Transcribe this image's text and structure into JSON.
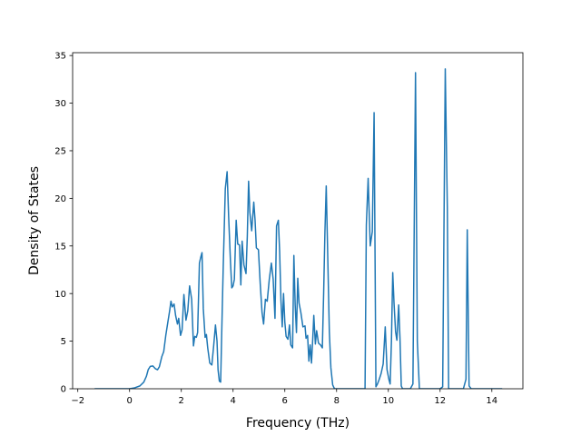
{
  "chart_data": {
    "type": "line",
    "title": "",
    "xlabel": "Frequency (THz)",
    "ylabel": "Density of States",
    "xlim": [
      -2.2,
      15.2
    ],
    "ylim": [
      0,
      35.3
    ],
    "xticks": [
      -2,
      0,
      2,
      4,
      6,
      8,
      10,
      12,
      14
    ],
    "yticks": [
      0,
      5,
      10,
      15,
      20,
      25,
      30,
      35
    ],
    "grid": false,
    "legend": "none",
    "series": [
      {
        "color": "#1f77b4",
        "points": [
          [
            -1.35,
            0
          ],
          [
            0.0,
            0
          ],
          [
            0.2,
            0.1
          ],
          [
            0.4,
            0.3
          ],
          [
            0.55,
            0.7
          ],
          [
            0.65,
            1.3
          ],
          [
            0.72,
            2.0
          ],
          [
            0.8,
            2.35
          ],
          [
            0.9,
            2.4
          ],
          [
            1.0,
            2.1
          ],
          [
            1.08,
            2.0
          ],
          [
            1.15,
            2.3
          ],
          [
            1.25,
            3.4
          ],
          [
            1.32,
            3.9
          ],
          [
            1.4,
            5.6
          ],
          [
            1.48,
            7.0
          ],
          [
            1.55,
            8.2
          ],
          [
            1.6,
            9.2
          ],
          [
            1.65,
            8.6
          ],
          [
            1.72,
            8.9
          ],
          [
            1.78,
            7.7
          ],
          [
            1.85,
            6.8
          ],
          [
            1.9,
            7.4
          ],
          [
            1.97,
            5.6
          ],
          [
            2.03,
            6.2
          ],
          [
            2.1,
            9.9
          ],
          [
            2.18,
            7.2
          ],
          [
            2.25,
            8.2
          ],
          [
            2.32,
            10.8
          ],
          [
            2.4,
            9.4
          ],
          [
            2.47,
            4.5
          ],
          [
            2.52,
            5.5
          ],
          [
            2.58,
            5.4
          ],
          [
            2.63,
            5.9
          ],
          [
            2.7,
            13.2
          ],
          [
            2.75,
            13.8
          ],
          [
            2.8,
            14.3
          ],
          [
            2.85,
            8.4
          ],
          [
            2.92,
            5.4
          ],
          [
            2.97,
            5.7
          ],
          [
            3.02,
            4.3
          ],
          [
            3.1,
            2.7
          ],
          [
            3.18,
            2.5
          ],
          [
            3.25,
            4.5
          ],
          [
            3.32,
            6.7
          ],
          [
            3.38,
            5.0
          ],
          [
            3.42,
            2.0
          ],
          [
            3.47,
            0.8
          ],
          [
            3.52,
            0.7
          ],
          [
            3.58,
            8.1
          ],
          [
            3.62,
            12.8
          ],
          [
            3.7,
            21.0
          ],
          [
            3.77,
            22.8
          ],
          [
            3.83,
            18.0
          ],
          [
            3.9,
            13.3
          ],
          [
            3.95,
            10.6
          ],
          [
            4.0,
            10.8
          ],
          [
            4.05,
            11.5
          ],
          [
            4.12,
            17.7
          ],
          [
            4.18,
            15.2
          ],
          [
            4.25,
            15.1
          ],
          [
            4.3,
            10.9
          ],
          [
            4.35,
            15.5
          ],
          [
            4.42,
            13.0
          ],
          [
            4.5,
            12.1
          ],
          [
            4.55,
            16.0
          ],
          [
            4.6,
            21.8
          ],
          [
            4.65,
            18.5
          ],
          [
            4.72,
            16.6
          ],
          [
            4.8,
            19.6
          ],
          [
            4.85,
            17.7
          ],
          [
            4.9,
            14.8
          ],
          [
            4.98,
            14.6
          ],
          [
            5.05,
            11.0
          ],
          [
            5.12,
            8.0
          ],
          [
            5.18,
            6.8
          ],
          [
            5.25,
            9.4
          ],
          [
            5.32,
            9.2
          ],
          [
            5.4,
            11.5
          ],
          [
            5.48,
            13.2
          ],
          [
            5.55,
            11.5
          ],
          [
            5.62,
            7.4
          ],
          [
            5.68,
            17.1
          ],
          [
            5.75,
            17.7
          ],
          [
            5.8,
            14.4
          ],
          [
            5.85,
            9.3
          ],
          [
            5.9,
            6.5
          ],
          [
            5.95,
            10.0
          ],
          [
            6.0,
            7.0
          ],
          [
            6.05,
            5.5
          ],
          [
            6.12,
            5.2
          ],
          [
            6.18,
            6.7
          ],
          [
            6.23,
            4.6
          ],
          [
            6.3,
            4.3
          ],
          [
            6.35,
            14.0
          ],
          [
            6.4,
            8.8
          ],
          [
            6.45,
            5.9
          ],
          [
            6.5,
            11.6
          ],
          [
            6.55,
            9.0
          ],
          [
            6.62,
            8.0
          ],
          [
            6.7,
            6.5
          ],
          [
            6.78,
            6.6
          ],
          [
            6.82,
            5.3
          ],
          [
            6.88,
            5.6
          ],
          [
            6.93,
            2.9
          ],
          [
            6.98,
            4.6
          ],
          [
            7.03,
            2.7
          ],
          [
            7.08,
            5.3
          ],
          [
            7.12,
            7.7
          ],
          [
            7.18,
            4.7
          ],
          [
            7.23,
            6.1
          ],
          [
            7.3,
            4.8
          ],
          [
            7.38,
            4.6
          ],
          [
            7.45,
            4.3
          ],
          [
            7.5,
            10.0
          ],
          [
            7.55,
            16.5
          ],
          [
            7.6,
            21.3
          ],
          [
            7.65,
            15.0
          ],
          [
            7.72,
            6.0
          ],
          [
            7.78,
            2.2
          ],
          [
            7.85,
            0.4
          ],
          [
            7.92,
            0
          ],
          [
            9.1,
            0
          ],
          [
            9.15,
            17.2
          ],
          [
            9.22,
            22.1
          ],
          [
            9.3,
            15.0
          ],
          [
            9.38,
            16.5
          ],
          [
            9.45,
            29.0
          ],
          [
            9.52,
            0.2
          ],
          [
            9.58,
            0.5
          ],
          [
            9.65,
            1.0
          ],
          [
            9.72,
            1.6
          ],
          [
            9.8,
            2.6
          ],
          [
            9.88,
            6.5
          ],
          [
            9.95,
            2.0
          ],
          [
            10.02,
            1.0
          ],
          [
            10.07,
            0.5
          ],
          [
            10.12,
            5.0
          ],
          [
            10.17,
            12.2
          ],
          [
            10.22,
            9.0
          ],
          [
            10.28,
            6.0
          ],
          [
            10.33,
            5.1
          ],
          [
            10.4,
            8.8
          ],
          [
            10.45,
            5.3
          ],
          [
            10.5,
            0.3
          ],
          [
            10.55,
            0
          ],
          [
            10.85,
            0
          ],
          [
            10.95,
            0.5
          ],
          [
            11.05,
            33.2
          ],
          [
            11.12,
            5.0
          ],
          [
            11.2,
            0
          ],
          [
            12.0,
            0
          ],
          [
            12.1,
            0.2
          ],
          [
            12.2,
            33.6
          ],
          [
            12.28,
            19.0
          ],
          [
            12.33,
            0
          ],
          [
            12.9,
            0
          ],
          [
            13.0,
            1.0
          ],
          [
            13.05,
            16.7
          ],
          [
            13.12,
            0.3
          ],
          [
            13.2,
            0
          ],
          [
            14.4,
            0
          ]
        ]
      }
    ]
  }
}
